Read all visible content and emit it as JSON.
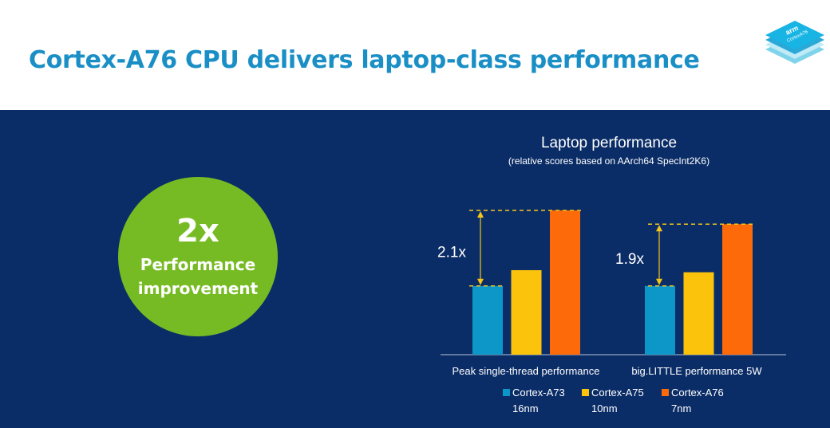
{
  "slide": {
    "title": "Cortex-A76 CPU delivers laptop-class performance"
  },
  "logo": {
    "icon": "arm-cortex-a76-chip-icon",
    "brand_text": "arm",
    "product_text": "CortexA76"
  },
  "badge": {
    "value": "2x",
    "line1": "Performance",
    "line2": "improvement"
  },
  "colors": {
    "title": "#1a8fc6",
    "panel": "#0b2d67",
    "badge": "#76bb23",
    "annotation": "#f5c518"
  },
  "chart_data": {
    "type": "bar",
    "title": "Laptop performance",
    "subtitle": "(relative scores based on AArch64 SpecInt2K6)",
    "categories": [
      "Peak single-thread performance",
      "big.LITTLE performance 5W"
    ],
    "series": [
      {
        "name": "Cortex-A73",
        "sublabel": "16nm",
        "color": "#0d96c8",
        "values": [
          1.0,
          1.0
        ]
      },
      {
        "name": "Cortex-A75",
        "sublabel": "10nm",
        "color": "#fcc30d",
        "values": [
          1.23,
          1.2
        ]
      },
      {
        "name": "Cortex-A76",
        "sublabel": "7nm",
        "color": "#fc6a0a",
        "values": [
          2.1,
          1.9
        ]
      }
    ],
    "annotations": [
      "2.1x",
      "1.9x"
    ],
    "ylim": [
      0,
      2.1
    ],
    "grid": false,
    "legend": "bottom"
  }
}
